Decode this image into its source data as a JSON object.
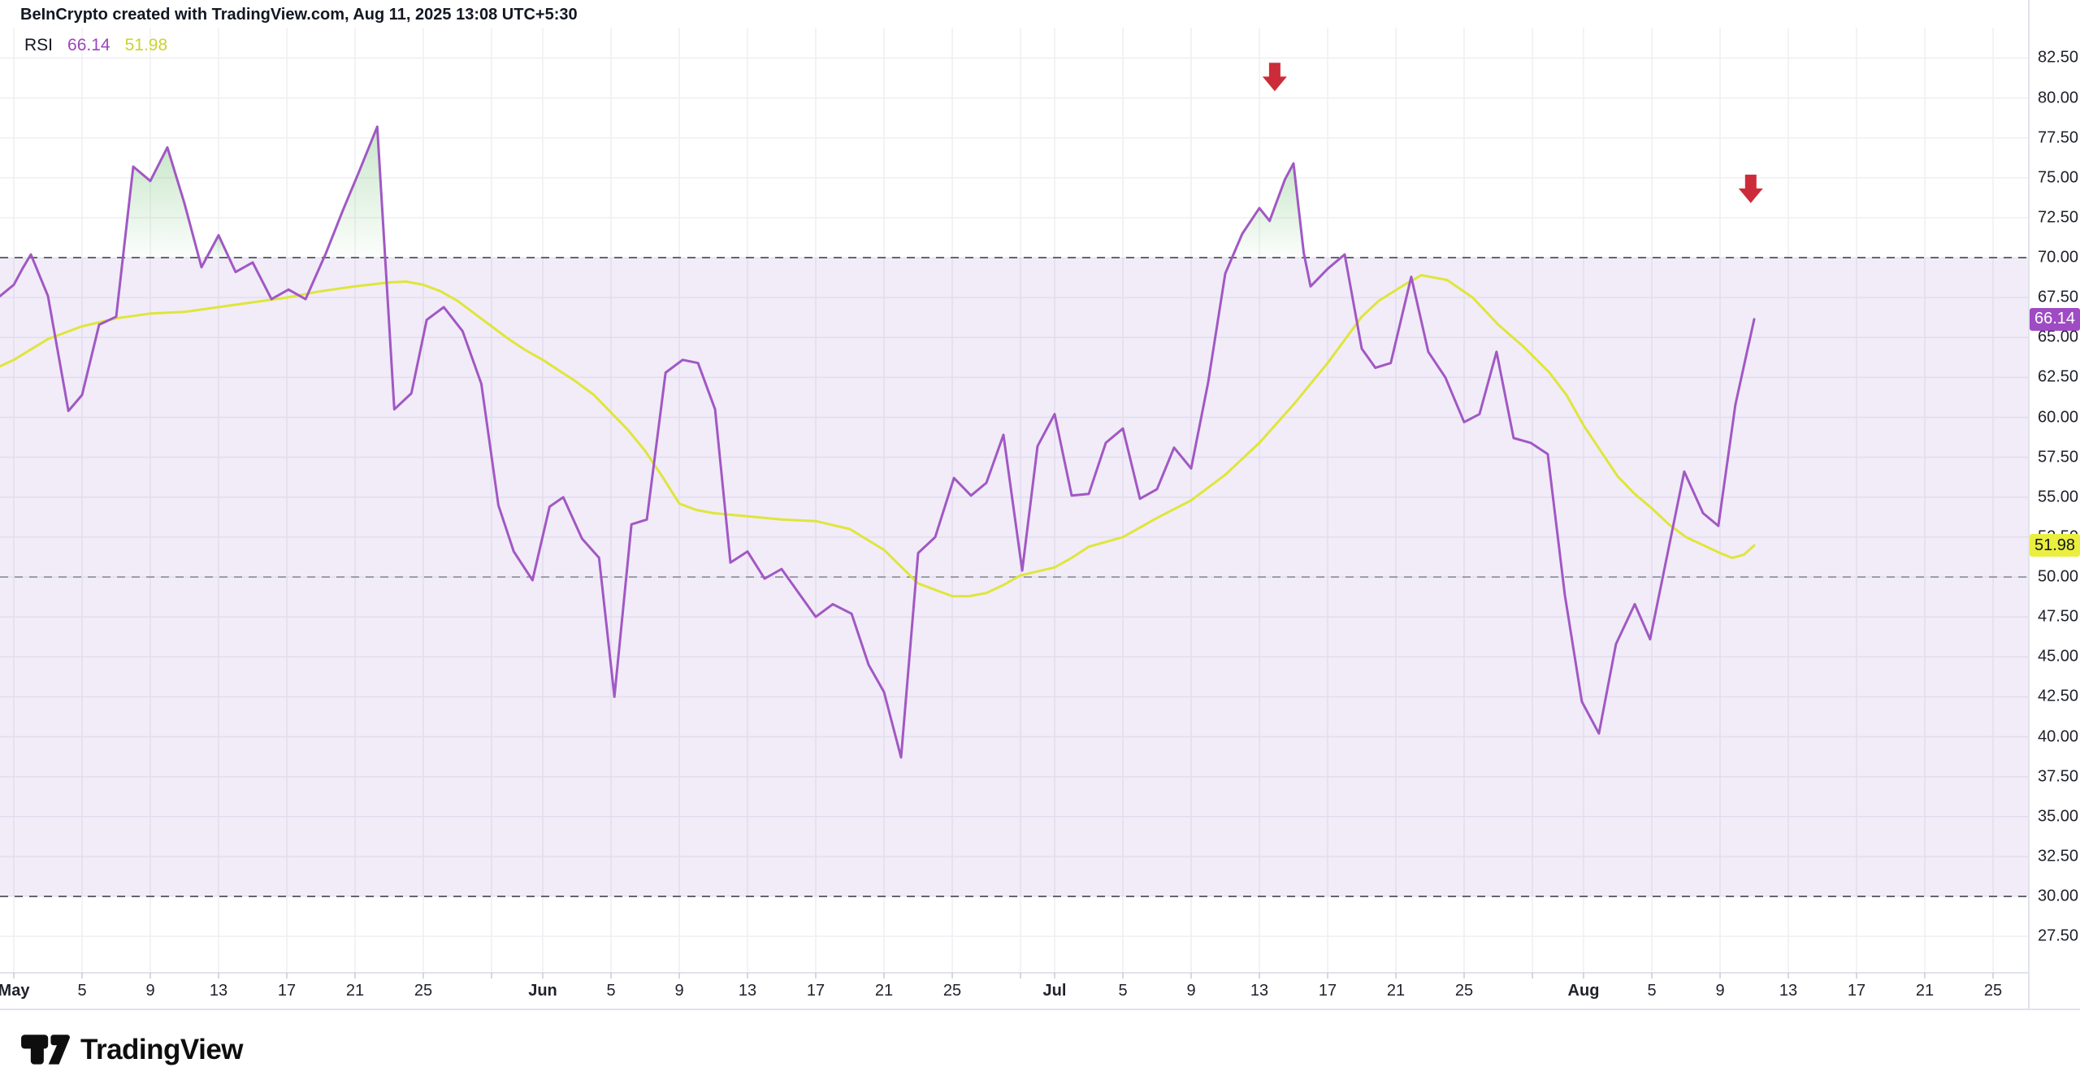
{
  "title": "BeInCrypto created with TradingView.com, Aug 11, 2025 13:08 UTC+5:30",
  "legend": {
    "name": "RSI",
    "rsi_value": "66.14",
    "ma_value": "51.98"
  },
  "badges": {
    "rsi": {
      "text": "66.14",
      "value": 66.14,
      "bg": "#9e4bc4",
      "fg": "#ffffff"
    },
    "ma": {
      "text": "51.98",
      "value": 51.98,
      "bg": "#eaef3f",
      "fg": "#131722"
    }
  },
  "footer": {
    "brand": "TradingView"
  },
  "colors": {
    "rsi_line": "#a158c4",
    "ma_line": "#e0e53a",
    "legend_rsi": "#9b46bd",
    "legend_ma": "#ccd32c",
    "band_fill": "rgba(120,70,190,0.10)",
    "level_line": "#63666f",
    "mid_line": "#9b9ea8",
    "grid": "#efeff4",
    "green_fill": "#4caf50",
    "arrow": "#cc2c39",
    "axis_border": "#e0e3eb",
    "tick": "#c7cad1",
    "text": "#20222c"
  },
  "y_axis": {
    "labels": [
      "82.50",
      "80.00",
      "77.50",
      "75.00",
      "72.50",
      "70.00",
      "67.50",
      "65.00",
      "62.50",
      "60.00",
      "57.50",
      "55.00",
      "52.50",
      "50.00",
      "47.50",
      "45.00",
      "42.50",
      "40.00",
      "37.50",
      "35.00",
      "32.50",
      "30.00",
      "27.50"
    ]
  },
  "x_axis": {
    "ticks": [
      {
        "label": "May",
        "d": 0,
        "month": true
      },
      {
        "label": "5",
        "d": 4
      },
      {
        "label": "9",
        "d": 8
      },
      {
        "label": "13",
        "d": 12
      },
      {
        "label": "17",
        "d": 16
      },
      {
        "label": "21",
        "d": 20
      },
      {
        "label": "25",
        "d": 24
      },
      {
        "label": "Jun",
        "d": 31,
        "month": true
      },
      {
        "label": "5",
        "d": 35
      },
      {
        "label": "9",
        "d": 39
      },
      {
        "label": "13",
        "d": 43
      },
      {
        "label": "17",
        "d": 47
      },
      {
        "label": "21",
        "d": 51
      },
      {
        "label": "25",
        "d": 55
      },
      {
        "label": "Jul",
        "d": 61,
        "month": true
      },
      {
        "label": "5",
        "d": 65
      },
      {
        "label": "9",
        "d": 69
      },
      {
        "label": "13",
        "d": 73
      },
      {
        "label": "17",
        "d": 77
      },
      {
        "label": "21",
        "d": 81
      },
      {
        "label": "25",
        "d": 85
      },
      {
        "label": "Aug",
        "d": 92,
        "month": true
      },
      {
        "label": "5",
        "d": 96
      },
      {
        "label": "9",
        "d": 100
      },
      {
        "label": "13",
        "d": 104
      },
      {
        "label": "17",
        "d": 108
      },
      {
        "label": "21",
        "d": 112
      },
      {
        "label": "25",
        "d": 116
      }
    ],
    "grid_only": [
      28,
      59,
      89
    ]
  },
  "chart_data": {
    "type": "line",
    "title": "RSI",
    "x_unit": "days since 2025-05-01",
    "xlabel": "date",
    "ylabel": "RSI",
    "y_axis_range": [
      27.5,
      82.5
    ],
    "grid": true,
    "levels": {
      "overbought": 70,
      "middle": 50,
      "oversold": 30
    },
    "series": [
      {
        "name": "RSI",
        "color": "#a158c4",
        "points": [
          [
            -0.8,
            67.6
          ],
          [
            0,
            68.3
          ],
          [
            0.5,
            69.3
          ],
          [
            1,
            70.2
          ],
          [
            2,
            67.6
          ],
          [
            3.2,
            60.4
          ],
          [
            4,
            61.4
          ],
          [
            5,
            65.8
          ],
          [
            6,
            66.3
          ],
          [
            7,
            75.7
          ],
          [
            8,
            74.8
          ],
          [
            9,
            76.9
          ],
          [
            10,
            73.4
          ],
          [
            11,
            69.4
          ],
          [
            12,
            71.4
          ],
          [
            13,
            69.1
          ],
          [
            14,
            69.7
          ],
          [
            15.1,
            67.4
          ],
          [
            16.1,
            68
          ],
          [
            17.1,
            67.4
          ],
          [
            18.3,
            70.3
          ],
          [
            19.3,
            73
          ],
          [
            20.2,
            75.3
          ],
          [
            21.3,
            78.2
          ],
          [
            22.3,
            60.5
          ],
          [
            23.3,
            61.5
          ],
          [
            24.2,
            66.1
          ],
          [
            25.2,
            66.9
          ],
          [
            26.3,
            65.4
          ],
          [
            27.4,
            62.1
          ],
          [
            28.4,
            54.5
          ],
          [
            29.3,
            51.6
          ],
          [
            30.4,
            49.8
          ],
          [
            31.4,
            54.4
          ],
          [
            32.2,
            55
          ],
          [
            33.3,
            52.4
          ],
          [
            34.3,
            51.2
          ],
          [
            35.2,
            42.5
          ],
          [
            36.2,
            53.3
          ],
          [
            37.1,
            53.6
          ],
          [
            38.2,
            62.8
          ],
          [
            39.2,
            63.6
          ],
          [
            40.1,
            63.4
          ],
          [
            41.1,
            60.5
          ],
          [
            42,
            50.9
          ],
          [
            43,
            51.6
          ],
          [
            44,
            49.9
          ],
          [
            45,
            50.5
          ],
          [
            47,
            47.5
          ],
          [
            48,
            48.3
          ],
          [
            49.1,
            47.7
          ],
          [
            50.1,
            44.5
          ],
          [
            51,
            42.8
          ],
          [
            52,
            38.7
          ],
          [
            53,
            51.5
          ],
          [
            54,
            52.5
          ],
          [
            55.1,
            56.2
          ],
          [
            56.1,
            55.1
          ],
          [
            57,
            55.9
          ],
          [
            58,
            58.9
          ],
          [
            59.1,
            50.4
          ],
          [
            60,
            58.2
          ],
          [
            61,
            60.2
          ],
          [
            62,
            55.1
          ],
          [
            63,
            55.2
          ],
          [
            64,
            58.4
          ],
          [
            65,
            59.3
          ],
          [
            66,
            54.9
          ],
          [
            67,
            55.5
          ],
          [
            68,
            58.1
          ],
          [
            69,
            56.8
          ],
          [
            70,
            62.2
          ],
          [
            71,
            69
          ],
          [
            72,
            71.5
          ],
          [
            73,
            73.1
          ],
          [
            73.6,
            72.3
          ],
          [
            74.5,
            74.9
          ],
          [
            75,
            75.9
          ],
          [
            75.6,
            70.3
          ],
          [
            76,
            68.2
          ],
          [
            77,
            69.3
          ],
          [
            78,
            70.2
          ],
          [
            79,
            64.3
          ],
          [
            79.8,
            63.1
          ],
          [
            80.7,
            63.4
          ],
          [
            81.9,
            68.8
          ],
          [
            82.9,
            64.1
          ],
          [
            83.9,
            62.5
          ],
          [
            85,
            59.7
          ],
          [
            85.9,
            60.2
          ],
          [
            86.9,
            64.1
          ],
          [
            87.9,
            58.7
          ],
          [
            88.9,
            58.4
          ],
          [
            89.9,
            57.7
          ],
          [
            90.9,
            48.9
          ],
          [
            91.9,
            42.2
          ],
          [
            92.9,
            40.2
          ],
          [
            93.9,
            45.8
          ],
          [
            95,
            48.3
          ],
          [
            95.9,
            46.1
          ],
          [
            97.9,
            56.6
          ],
          [
            99,
            54
          ],
          [
            99.9,
            53.2
          ],
          [
            100.9,
            60.8
          ],
          [
            102,
            66.14
          ]
        ]
      },
      {
        "name": "RSI-based MA",
        "color": "#e0e53a",
        "points": [
          [
            -0.8,
            63.2
          ],
          [
            0,
            63.6
          ],
          [
            2,
            64.9
          ],
          [
            4,
            65.7
          ],
          [
            6,
            66.2
          ],
          [
            8,
            66.5
          ],
          [
            10,
            66.6
          ],
          [
            12,
            66.9
          ],
          [
            14,
            67.2
          ],
          [
            16,
            67.5
          ],
          [
            18,
            67.9
          ],
          [
            20,
            68.2
          ],
          [
            22,
            68.45
          ],
          [
            23,
            68.5
          ],
          [
            24,
            68.3
          ],
          [
            25,
            67.9
          ],
          [
            26,
            67.3
          ],
          [
            27,
            66.5
          ],
          [
            28,
            65.7
          ],
          [
            29,
            64.9
          ],
          [
            30,
            64.2
          ],
          [
            31,
            63.6
          ],
          [
            32,
            62.9
          ],
          [
            33,
            62.2
          ],
          [
            34,
            61.4
          ],
          [
            35,
            60.3
          ],
          [
            36,
            59.2
          ],
          [
            37,
            57.9
          ],
          [
            38,
            56.3
          ],
          [
            39,
            54.6
          ],
          [
            40,
            54.2
          ],
          [
            41,
            54
          ],
          [
            43,
            53.8
          ],
          [
            45,
            53.6
          ],
          [
            47,
            53.5
          ],
          [
            49,
            53
          ],
          [
            51,
            51.7
          ],
          [
            53,
            49.6
          ],
          [
            55,
            48.8
          ],
          [
            56,
            48.8
          ],
          [
            57,
            49
          ],
          [
            58,
            49.5
          ],
          [
            59,
            50.1
          ],
          [
            61,
            50.6
          ],
          [
            62,
            51.2
          ],
          [
            63,
            51.9
          ],
          [
            65,
            52.5
          ],
          [
            67,
            53.7
          ],
          [
            69,
            54.8
          ],
          [
            71,
            56.4
          ],
          [
            73,
            58.4
          ],
          [
            75,
            60.8
          ],
          [
            77,
            63.4
          ],
          [
            79,
            66.3
          ],
          [
            80,
            67.3
          ],
          [
            81.5,
            68.3
          ],
          [
            82.5,
            68.9
          ],
          [
            84,
            68.6
          ],
          [
            85.5,
            67.5
          ],
          [
            87,
            65.8
          ],
          [
            88.5,
            64.4
          ],
          [
            90,
            62.8
          ],
          [
            91,
            61.4
          ],
          [
            92,
            59.5
          ],
          [
            93,
            57.9
          ],
          [
            94,
            56.3
          ],
          [
            95,
            55.2
          ],
          [
            96,
            54.3
          ],
          [
            97,
            53.3
          ],
          [
            98,
            52.5
          ],
          [
            99,
            52
          ],
          [
            100,
            51.5
          ],
          [
            100.7,
            51.2
          ],
          [
            101.4,
            51.4
          ],
          [
            102,
            51.98
          ]
        ]
      }
    ],
    "annotations": {
      "arrows_down": [
        {
          "day": 73.9,
          "top_value": 82.2,
          "meaning": "bearish marker above Jul 14 peak"
        },
        {
          "day": 101.8,
          "top_value": 75.2,
          "meaning": "bearish marker above Aug 11 rise"
        }
      ]
    },
    "last_values": {
      "rsi": 66.14,
      "ma": 51.98
    }
  }
}
